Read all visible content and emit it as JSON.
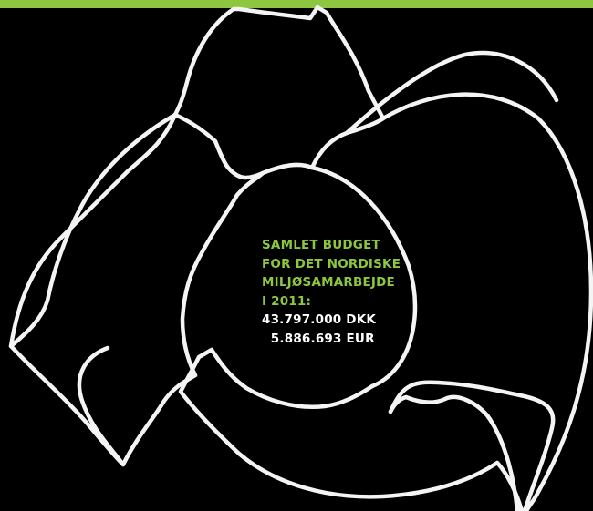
{
  "colors": {
    "accent": "#8dc63f",
    "background": "#000000",
    "outline": "#f4f4f4"
  },
  "budget": {
    "heading_lines": [
      "SAMLET BUDGET",
      "FOR DET NORDISKE",
      "MILJØSAMARBEJDE",
      "I 2011:"
    ],
    "amount_dkk": "43.797.000 DKK",
    "amount_eur": "  5.886.693 EUR"
  }
}
